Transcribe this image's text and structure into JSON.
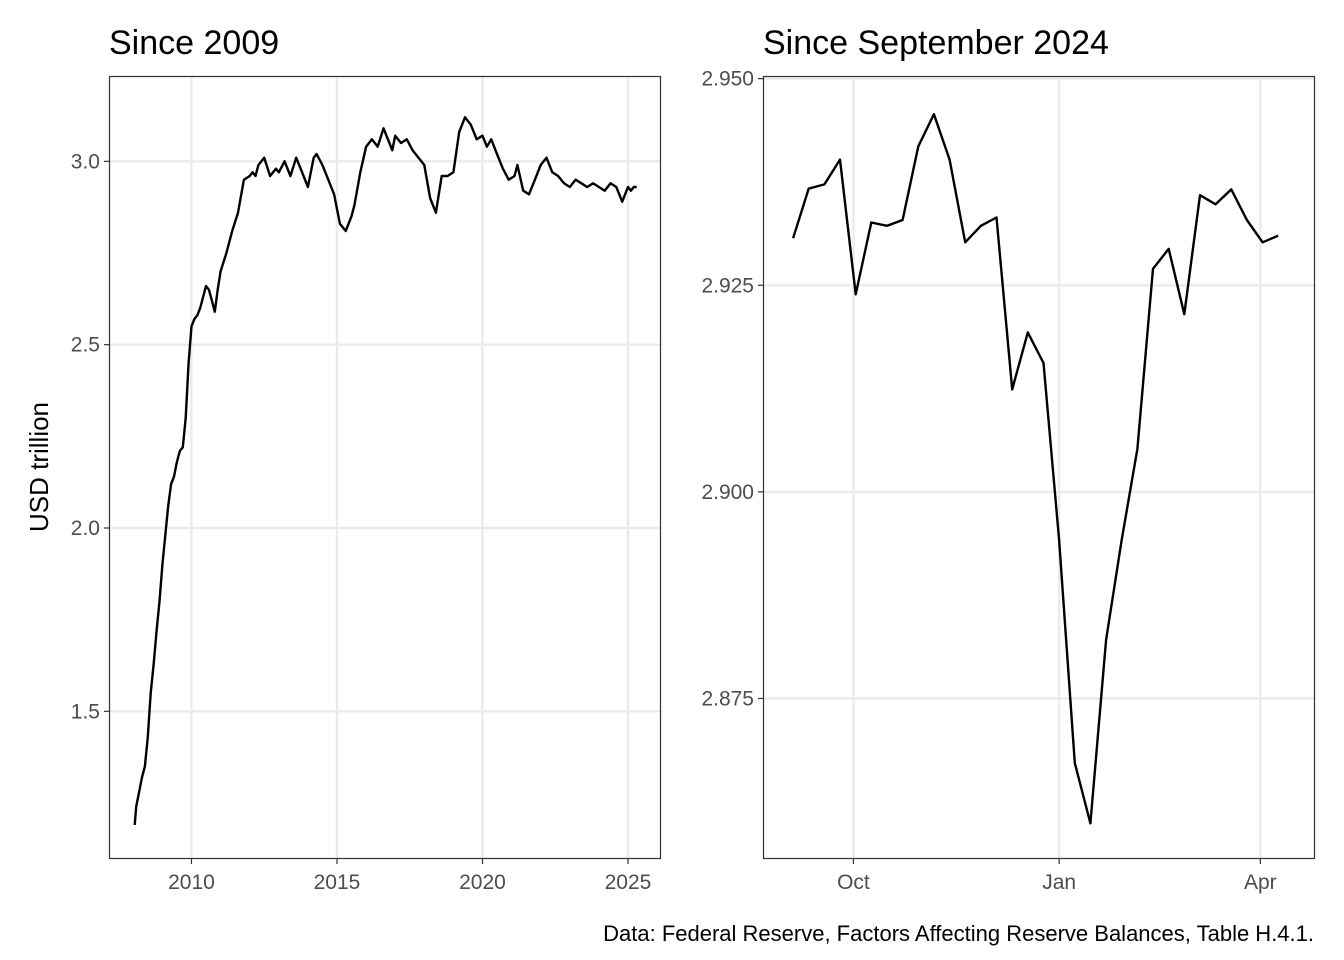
{
  "caption": "Data: Federal Reserve, Factors Affecting Reserve Balances, Table H.4.1.",
  "chart_data": [
    {
      "type": "line",
      "title": "Since 2009",
      "xlabel": "",
      "ylabel": "USD trillion",
      "x_tick_labels": [
        "2010",
        "2015",
        "2020",
        "2025"
      ],
      "x_ticks": [
        2010,
        2015,
        2020,
        2025
      ],
      "y_tick_labels": [
        "1.5",
        "2.0",
        "2.5",
        "3.0"
      ],
      "y_ticks": [
        1.5,
        2.0,
        2.5,
        3.0
      ],
      "xlim": [
        2007.2,
        2026.1
      ],
      "ylim": [
        1.1,
        3.23
      ],
      "grid": true,
      "series": [
        {
          "x": [
            2008.05,
            2008.1,
            2008.2,
            2008.3,
            2008.4,
            2008.5,
            2008.6,
            2008.7,
            2008.8,
            2008.9,
            2009.0,
            2009.1,
            2009.2,
            2009.3,
            2009.4,
            2009.5,
            2009.6,
            2009.7,
            2009.8,
            2009.9,
            2010.0,
            2010.1,
            2010.2,
            2010.3,
            2010.4,
            2010.5,
            2010.6,
            2010.7,
            2010.8,
            2010.9,
            2011.0,
            2011.2,
            2011.4,
            2011.6,
            2011.8,
            2012.0,
            2012.1,
            2012.2,
            2012.3,
            2012.5,
            2012.7,
            2012.9,
            2013.0,
            2013.2,
            2013.4,
            2013.6,
            2013.8,
            2014.0,
            2014.2,
            2014.3,
            2014.5,
            2014.7,
            2014.9,
            2015.1,
            2015.3,
            2015.5,
            2015.6,
            2015.8,
            2016.0,
            2016.2,
            2016.4,
            2016.6,
            2016.8,
            2016.9,
            2017.0,
            2017.2,
            2017.4,
            2017.6,
            2017.8,
            2018.0,
            2018.2,
            2018.4,
            2018.6,
            2018.8,
            2019.0,
            2019.2,
            2019.4,
            2019.6,
            2019.8,
            2020.0,
            2020.15,
            2020.3,
            2020.5,
            2020.7,
            2020.9,
            2021.1,
            2021.2,
            2021.4,
            2021.6,
            2021.8,
            2022.0,
            2022.2,
            2022.4,
            2022.6,
            2022.8,
            2023.0,
            2023.2,
            2023.4,
            2023.6,
            2023.8,
            2024.0,
            2024.2,
            2024.4,
            2024.6,
            2024.8,
            2025.0,
            2025.1,
            2025.2,
            2025.3
          ],
          "y": [
            1.19,
            1.24,
            1.28,
            1.32,
            1.35,
            1.43,
            1.55,
            1.63,
            1.72,
            1.8,
            1.9,
            1.98,
            2.06,
            2.12,
            2.14,
            2.18,
            2.21,
            2.22,
            2.3,
            2.45,
            2.55,
            2.57,
            2.58,
            2.6,
            2.63,
            2.66,
            2.65,
            2.62,
            2.59,
            2.65,
            2.7,
            2.75,
            2.81,
            2.86,
            2.95,
            2.96,
            2.97,
            2.96,
            2.99,
            3.01,
            2.96,
            2.98,
            2.97,
            3.0,
            2.96,
            3.01,
            2.97,
            2.93,
            3.01,
            3.02,
            2.99,
            2.95,
            2.91,
            2.83,
            2.81,
            2.85,
            2.88,
            2.97,
            3.04,
            3.06,
            3.04,
            3.09,
            3.05,
            3.03,
            3.07,
            3.05,
            3.06,
            3.03,
            3.01,
            2.99,
            2.9,
            2.86,
            2.96,
            2.96,
            2.97,
            3.08,
            3.12,
            3.1,
            3.06,
            3.07,
            3.04,
            3.06,
            3.02,
            2.98,
            2.95,
            2.96,
            2.99,
            2.92,
            2.91,
            2.95,
            2.99,
            3.01,
            2.97,
            2.96,
            2.94,
            2.93,
            2.95,
            2.94,
            2.93,
            2.94,
            2.93,
            2.92,
            2.94,
            2.93,
            2.89,
            2.93,
            2.92,
            2.93,
            2.93
          ]
        }
      ]
    },
    {
      "type": "line",
      "title": "Since September 2024",
      "xlabel": "",
      "ylabel": "",
      "x_tick_labels": [
        "Oct",
        "Jan",
        "Apr"
      ],
      "x_ticks": [
        "2024-10-01",
        "2025-01-01",
        "2025-04-01"
      ],
      "y_tick_labels": [
        "2.875",
        "2.900",
        "2.925",
        "2.950"
      ],
      "y_ticks": [
        2.875,
        2.9,
        2.925,
        2.95
      ],
      "xlim": [
        "2024-08-22",
        "2025-04-25"
      ],
      "ylim": [
        2.8557,
        2.9502
      ],
      "grid": true,
      "series": [
        {
          "x": [
            "2024-09-04",
            "2024-09-11",
            "2024-09-18",
            "2024-09-25",
            "2024-10-02",
            "2024-10-09",
            "2024-10-16",
            "2024-10-23",
            "2024-10-30",
            "2024-11-06",
            "2024-11-13",
            "2024-11-20",
            "2024-11-27",
            "2024-12-04",
            "2024-12-11",
            "2024-12-18",
            "2024-12-25",
            "2025-01-01",
            "2025-01-08",
            "2025-01-15",
            "2025-01-22",
            "2025-01-29",
            "2025-02-05",
            "2025-02-12",
            "2025-02-19",
            "2025-02-26",
            "2025-03-05",
            "2025-03-12",
            "2025-03-19",
            "2025-03-26",
            "2025-04-02",
            "2025-04-09"
          ],
          "y": [
            2.9307,
            2.9367,
            2.9372,
            2.9402,
            2.9239,
            2.9326,
            2.9322,
            2.9329,
            2.9418,
            2.9457,
            2.9402,
            2.9302,
            2.9322,
            2.9332,
            2.9124,
            2.9193,
            2.9156,
            2.8942,
            2.8672,
            2.8599,
            2.8821,
            2.8942,
            2.9052,
            2.927,
            2.9294,
            2.9215,
            2.9359,
            2.9348,
            2.9366,
            2.9329,
            2.9302,
            2.931
          ]
        }
      ]
    }
  ]
}
